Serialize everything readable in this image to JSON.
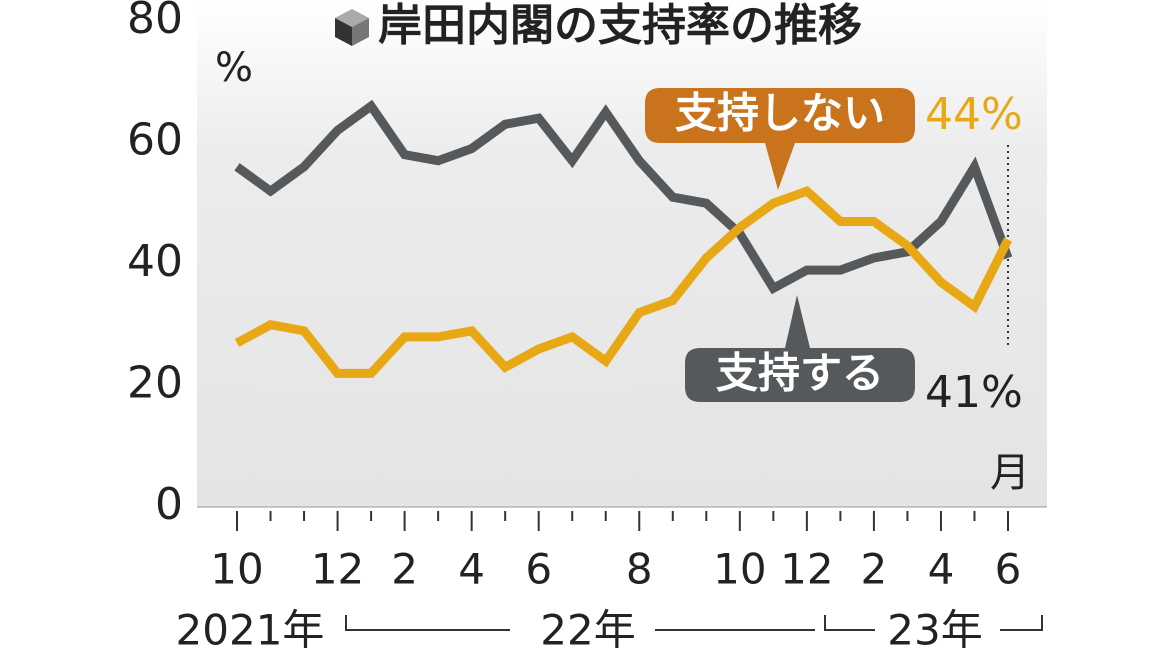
{
  "chart_data": {
    "type": "line",
    "title": "岸田内閣の支持率の推移",
    "y_unit": "%",
    "x_unit": "月",
    "categories": [
      "10",
      null,
      null,
      "12",
      null,
      "2",
      null,
      "4",
      null,
      "6",
      null,
      null,
      "8",
      null,
      null,
      "10",
      null,
      "12",
      null,
      "2",
      null,
      "4",
      null,
      "6"
    ],
    "year_labels": [
      "2021年",
      "22年",
      "23年"
    ],
    "series": [
      {
        "name": "支持する",
        "color": "#55595b",
        "values": [
          56,
          52,
          56,
          62,
          66,
          58,
          57,
          59,
          63,
          64,
          57,
          65,
          57,
          51,
          50,
          45,
          36,
          39,
          39,
          41,
          42,
          47,
          56,
          41
        ],
        "value_labels": [
          null,
          null,
          null,
          null,
          null,
          null,
          null,
          null,
          null,
          null,
          null,
          null,
          null,
          null,
          null,
          null,
          null,
          null,
          null,
          null,
          null,
          null,
          null,
          "41%"
        ]
      },
      {
        "name": "支持しない",
        "color": "#e8a816",
        "values": [
          27,
          30,
          29,
          22,
          22,
          28,
          28,
          29,
          23,
          26,
          28,
          24,
          32,
          34,
          41,
          46,
          50,
          52,
          47,
          47,
          43,
          37,
          33,
          44
        ],
        "value_labels": [
          null,
          null,
          null,
          null,
          null,
          null,
          null,
          null,
          null,
          null,
          null,
          null,
          null,
          null,
          null,
          null,
          null,
          null,
          null,
          null,
          null,
          null,
          null,
          "44%"
        ]
      }
    ],
    "ylim": [
      0,
      80
    ],
    "yticks": [
      0,
      20,
      40,
      60,
      80
    ],
    "grid": false
  }
}
